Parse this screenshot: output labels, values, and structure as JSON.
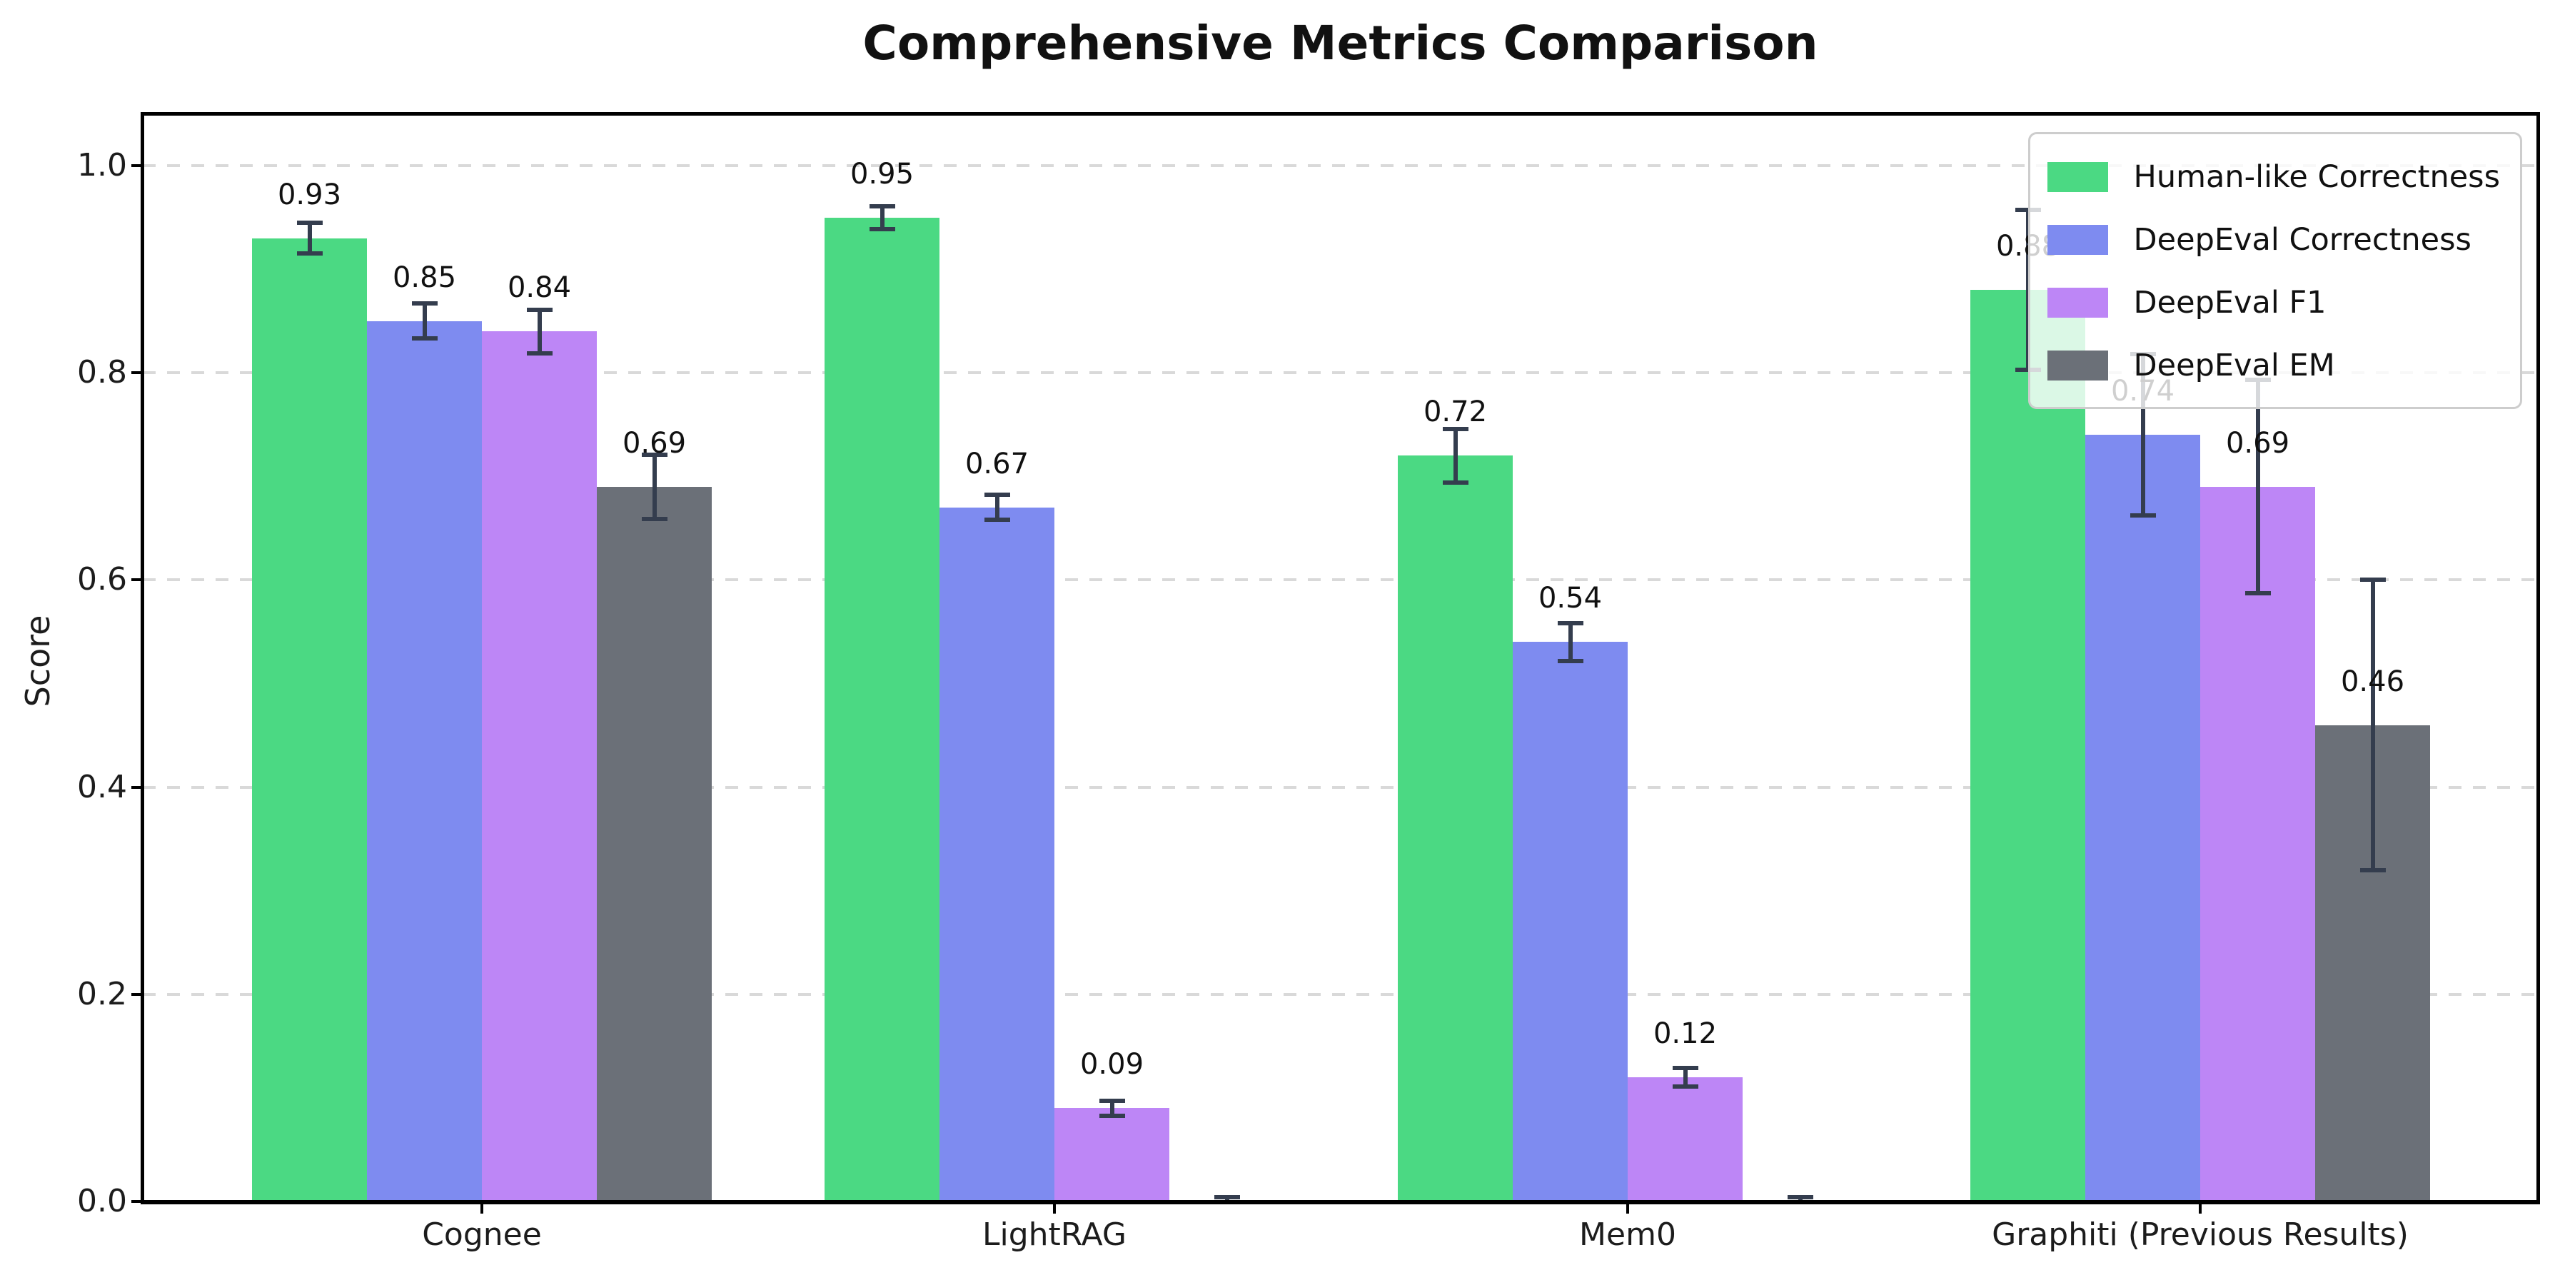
{
  "title": "Comprehensive Metrics Comparison",
  "chart_data": {
    "type": "bar",
    "title": "Comprehensive Metrics Comparison",
    "xlabel": "",
    "ylabel": "Score",
    "categories": [
      "Cognee",
      "LightRAG",
      "Mem0",
      "Graphiti (Previous Results)"
    ],
    "series": [
      {
        "name": "Human-like Correctness",
        "color": "#4bd983",
        "values": [
          0.93,
          0.95,
          0.72,
          0.88
        ],
        "errors": [
          0.015,
          0.011,
          0.026,
          0.077
        ],
        "value_labels": [
          "0.93",
          "0.95",
          "0.72",
          "0.88"
        ]
      },
      {
        "name": "DeepEval Correctness",
        "color": "#7e8bf0",
        "values": [
          0.85,
          0.67,
          0.54,
          0.74
        ],
        "errors": [
          0.017,
          0.012,
          0.018,
          0.078
        ],
        "value_labels": [
          "0.85",
          "0.67",
          "0.54",
          "0.74"
        ]
      },
      {
        "name": "DeepEval F1",
        "color": "#bd86f6",
        "values": [
          0.84,
          0.09,
          0.12,
          0.69
        ],
        "errors": [
          0.021,
          0.007,
          0.009,
          0.103
        ],
        "value_labels": [
          "0.84",
          "0.09",
          "0.12",
          "0.69"
        ]
      },
      {
        "name": "DeepEval EM",
        "color": "#6b7078",
        "values": [
          0.69,
          0.0,
          0.0,
          0.46
        ],
        "errors": [
          0.031,
          0.004,
          0.004,
          0.14
        ],
        "value_labels": [
          "0.69",
          null,
          null,
          "0.46"
        ]
      }
    ],
    "yticks": [
      "0.0",
      "0.2",
      "0.4",
      "0.6",
      "0.8",
      "1.0"
    ],
    "ytick_values": [
      0.0,
      0.2,
      0.4,
      0.6,
      0.8,
      1.0
    ],
    "ylim": [
      0,
      1.05
    ],
    "grid": {
      "axis": "y",
      "style": "dashed",
      "color": "#d9d9d9"
    },
    "legend": {
      "position": "upper right",
      "entries": [
        "Human-like Correctness",
        "DeepEval Correctness",
        "DeepEval F1",
        "DeepEval EM"
      ]
    },
    "error_bar_color": "#343d4e",
    "axis_color": "#000000",
    "background_color": "#ffffff",
    "bar_label_color": "#111111"
  }
}
